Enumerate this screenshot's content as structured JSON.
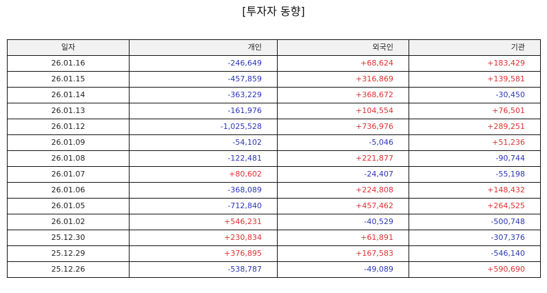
{
  "title": "[투자자 동향]",
  "table": {
    "headers": [
      "일자",
      "개인",
      "외국인",
      "기관"
    ],
    "rows": [
      [
        "26.01.16",
        "-246,649",
        "+68,624",
        "+183,429"
      ],
      [
        "26.01.15",
        "-457,859",
        "+316,869",
        "+139,581"
      ],
      [
        "26.01.14",
        "-363,229",
        "+368,672",
        "-30,450"
      ],
      [
        "26.01.13",
        "-161,976",
        "+104,554",
        "+76,501"
      ],
      [
        "26.01.12",
        "-1,025,528",
        "+736,976",
        "+289,251"
      ],
      [
        "26.01.09",
        "-54,102",
        "-5,046",
        "+51,236"
      ],
      [
        "26.01.08",
        "-122,481",
        "+221,877",
        "-90,744"
      ],
      [
        "26.01.07",
        "+80,602",
        "-24,407",
        "-55,198"
      ],
      [
        "26.01.06",
        "-368,089",
        "+224,808",
        "+148,432"
      ],
      [
        "26.01.05",
        "-712,840",
        "+457,462",
        "+264,525"
      ],
      [
        "26.01.02",
        "+546,231",
        "-40,529",
        "-500,748"
      ],
      [
        "25.12.30",
        "+230,834",
        "+61,891",
        "-307,376"
      ],
      [
        "25.12.29",
        "+376,895",
        "+167,583",
        "-546,140"
      ],
      [
        "25.12.26",
        "-538,787",
        "-49,089",
        "+590,690"
      ]
    ]
  },
  "colors": {
    "positive": "#e03030",
    "negative": "#2a35b5",
    "header_bg": "#f2f2f2",
    "border": "#111111"
  }
}
